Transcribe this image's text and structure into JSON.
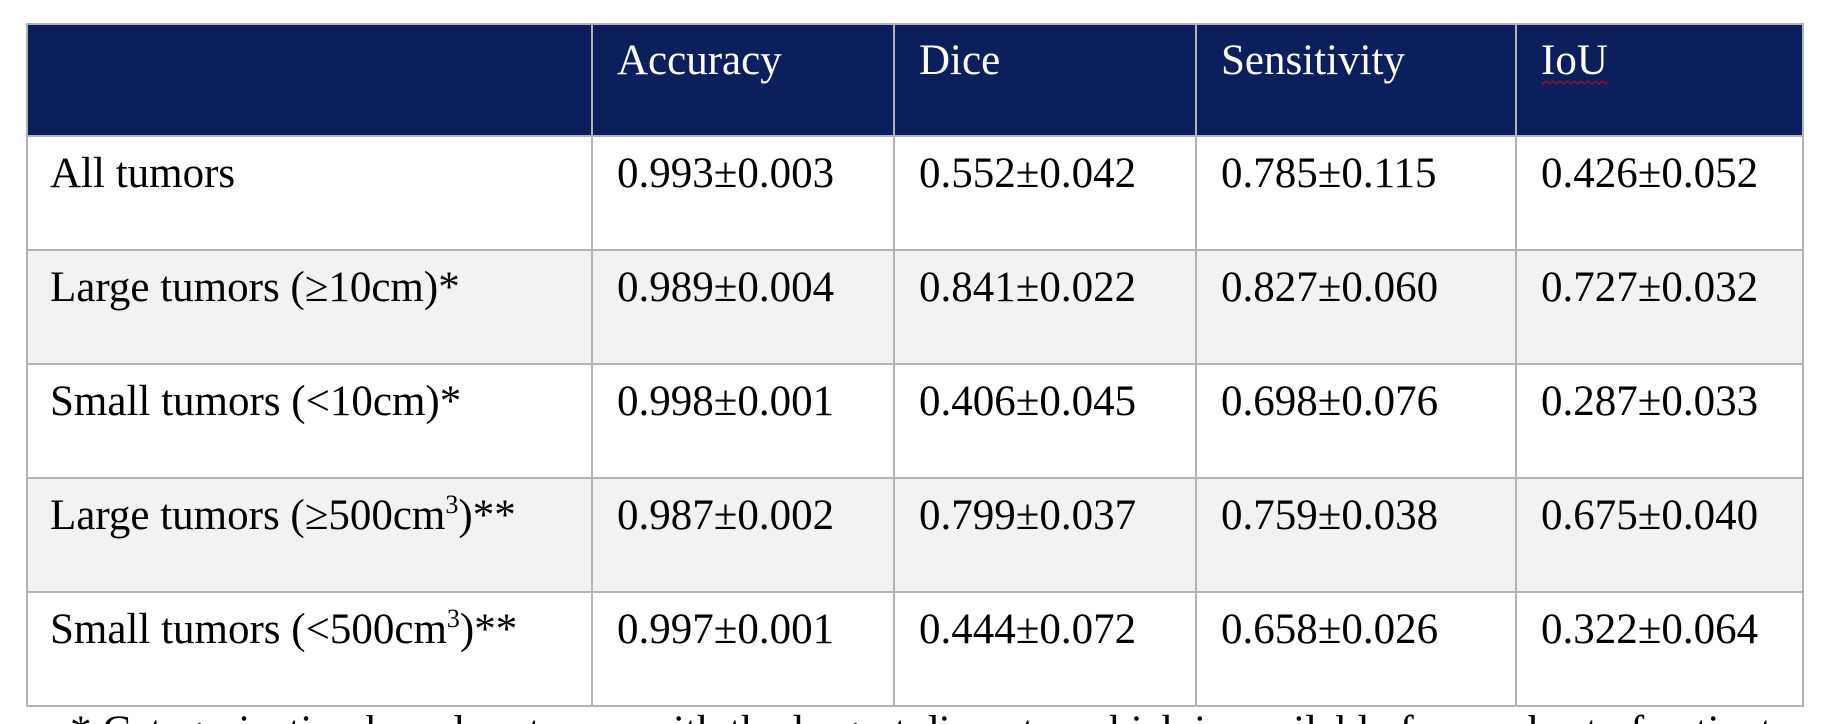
{
  "table": {
    "header": [
      "",
      "Accuracy",
      "Dice",
      "Sensitivity",
      "IoU"
    ],
    "rows": [
      {
        "label_prefix": "All tumors",
        "label_sup": "",
        "label_suffix": "",
        "values": [
          "0.993±0.003",
          "0.552±0.042",
          "0.785±0.115",
          "0.426±0.052"
        ]
      },
      {
        "label_prefix": "Large tumors (≥10cm)*",
        "label_sup": "",
        "label_suffix": "",
        "values": [
          "0.989±0.004",
          "0.841±0.022",
          "0.827±0.060",
          "0.727±0.032"
        ]
      },
      {
        "label_prefix": "Small tumors (<10cm)*",
        "label_sup": "",
        "label_suffix": "",
        "values": [
          "0.998±0.001",
          "0.406±0.045",
          "0.698±0.076",
          "0.287±0.033"
        ]
      },
      {
        "label_prefix": "Large tumors (≥500cm",
        "label_sup": "3",
        "label_suffix": ")**",
        "values": [
          "0.987±0.002",
          "0.799±0.037",
          "0.759±0.038",
          "0.675±0.040"
        ]
      },
      {
        "label_prefix": "Small tumors (<500cm",
        "label_sup": "3",
        "label_suffix": ")**",
        "values": [
          "0.997±0.001",
          "0.444±0.072",
          "0.658±0.026",
          "0.322±0.064"
        ]
      }
    ]
  },
  "footnote": "* Categorization based on tumor with the largest diameter which is available for a subset of patients",
  "colors": {
    "header_bg": "#0b1f5c",
    "header_text": "#ffffff",
    "row_shade": "#f2f2f2",
    "border": "#b3b3b3"
  }
}
